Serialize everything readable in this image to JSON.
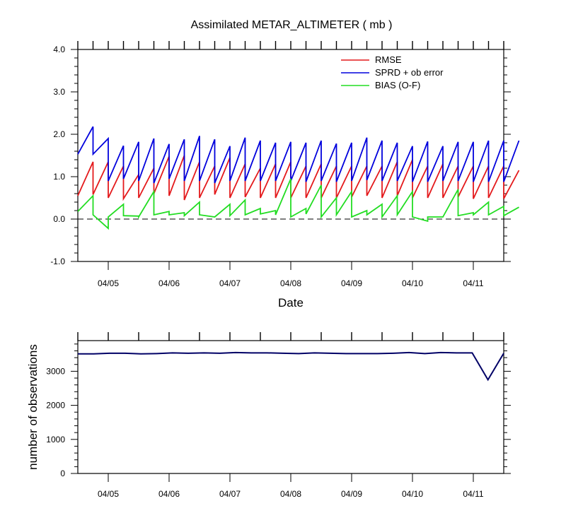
{
  "colors": {
    "rmse": "#e41a1c",
    "sprd": "#0000dd",
    "bias": "#22dd22",
    "obs": "#000066"
  },
  "chart_data": [
    {
      "type": "line",
      "title": "Assimilated METAR_ALTIMETER ( mb )",
      "xlabel": "Date",
      "ylabel": "",
      "x_tick_labels": [
        "04/05",
        "04/06",
        "04/07",
        "04/08",
        "04/09",
        "04/10",
        "04/11"
      ],
      "y_tick_labels": [
        "4.0",
        "3.0",
        "2.0",
        "1.0",
        "0.0",
        "-1.0"
      ],
      "ylim": [
        -1.0,
        4.0
      ],
      "grid": false,
      "reference_line": {
        "y": 0.0,
        "style": "dashed"
      },
      "legend_position": "top-right",
      "x_unit": "cycle index, 6-hourly cycles, each cycle shown as prior then posterior",
      "series": [
        {
          "name": "RMSE",
          "color_key": "rmse",
          "segments": [
            [
              0.55,
              1.35
            ],
            [
              0.58,
              1.35
            ],
            [
              0.5,
              1.25
            ],
            [
              0.48,
              1.05
            ],
            [
              0.5,
              1.2
            ],
            [
              0.6,
              1.48
            ],
            [
              0.55,
              1.5
            ],
            [
              0.45,
              1.35
            ],
            [
              0.5,
              1.25
            ],
            [
              0.58,
              1.45
            ],
            [
              0.5,
              1.3
            ],
            [
              0.52,
              1.2
            ],
            [
              0.5,
              1.3
            ],
            [
              0.5,
              1.35
            ],
            [
              0.5,
              1.25
            ],
            [
              0.5,
              1.3
            ],
            [
              0.5,
              1.25
            ],
            [
              0.5,
              1.25
            ],
            [
              0.52,
              1.25
            ],
            [
              0.55,
              1.25
            ],
            [
              0.5,
              1.35
            ],
            [
              0.55,
              1.4
            ],
            [
              0.5,
              1.25
            ],
            [
              0.5,
              1.3
            ],
            [
              0.5,
              1.25
            ],
            [
              0.52,
              1.25
            ],
            [
              0.48,
              1.25
            ],
            [
              0.5,
              1.25
            ],
            [
              0.48,
              1.15
            ]
          ]
        },
        {
          "name": "SPRD + ob error",
          "color_key": "sprd",
          "segments": [
            [
              1.53,
              2.18
            ],
            [
              1.53,
              1.9
            ],
            [
              0.9,
              1.73
            ],
            [
              0.95,
              1.82
            ],
            [
              0.9,
              1.9
            ],
            [
              0.85,
              1.77
            ],
            [
              0.95,
              1.88
            ],
            [
              0.9,
              1.96
            ],
            [
              0.9,
              1.88
            ],
            [
              0.85,
              1.72
            ],
            [
              0.9,
              1.92
            ],
            [
              0.9,
              1.85
            ],
            [
              0.9,
              1.8
            ],
            [
              0.9,
              1.82
            ],
            [
              0.9,
              1.8
            ],
            [
              0.88,
              1.85
            ],
            [
              0.9,
              1.78
            ],
            [
              0.88,
              1.8
            ],
            [
              0.9,
              1.92
            ],
            [
              0.92,
              1.85
            ],
            [
              0.9,
              1.8
            ],
            [
              0.9,
              1.72
            ],
            [
              0.88,
              1.83
            ],
            [
              0.88,
              1.72
            ],
            [
              0.9,
              1.82
            ],
            [
              0.9,
              1.82
            ],
            [
              0.88,
              1.85
            ],
            [
              0.88,
              1.85
            ],
            [
              0.88,
              1.85
            ]
          ]
        },
        {
          "name": "BIAS (O-F)",
          "color_key": "bias",
          "segments": [
            [
              0.18,
              0.55
            ],
            [
              0.1,
              -0.22
            ],
            [
              0.05,
              0.35
            ],
            [
              0.08,
              0.07
            ],
            [
              0.05,
              0.65
            ],
            [
              0.1,
              0.18
            ],
            [
              0.1,
              0.15
            ],
            [
              0.08,
              0.4
            ],
            [
              0.1,
              0.05
            ],
            [
              0.05,
              0.35
            ],
            [
              0.08,
              0.45
            ],
            [
              0.1,
              0.25
            ],
            [
              0.12,
              0.2
            ],
            [
              0.1,
              0.95
            ],
            [
              0.05,
              0.25
            ],
            [
              0.12,
              0.8
            ],
            [
              0.05,
              0.5
            ],
            [
              0.1,
              0.65
            ],
            [
              0.05,
              0.2
            ],
            [
              0.1,
              0.35
            ],
            [
              0.05,
              0.55
            ],
            [
              0.1,
              0.65
            ],
            [
              0.05,
              -0.05
            ],
            [
              0.05,
              0.05
            ],
            [
              0.05,
              0.7
            ],
            [
              0.08,
              0.15
            ],
            [
              0.1,
              0.4
            ],
            [
              0.1,
              0.3
            ],
            [
              0.08,
              0.28
            ]
          ]
        }
      ]
    },
    {
      "type": "line",
      "title": "",
      "xlabel": "",
      "ylabel": "number of observations",
      "x_tick_labels": [
        "04/05",
        "04/06",
        "04/07",
        "04/08",
        "04/09",
        "04/10",
        "04/11"
      ],
      "y_tick_labels": [
        "0",
        "1000",
        "2000",
        "3000"
      ],
      "ylim": [
        0,
        3900
      ],
      "grid": false,
      "series": [
        {
          "name": "",
          "color_key": "obs",
          "values": [
            3510,
            3510,
            3530,
            3530,
            3510,
            3520,
            3540,
            3530,
            3540,
            3530,
            3550,
            3540,
            3540,
            3530,
            3520,
            3540,
            3530,
            3520,
            3520,
            3520,
            3530,
            3550,
            3520,
            3550,
            3540,
            3540,
            2750,
            3530
          ]
        }
      ]
    }
  ]
}
